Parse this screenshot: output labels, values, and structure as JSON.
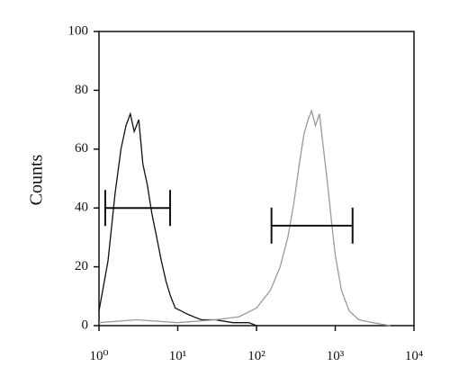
{
  "chart_data": {
    "type": "line",
    "ylabel": "Counts",
    "log_x": true,
    "xlim": [
      1,
      10000
    ],
    "xticks": [
      {
        "value": 1,
        "label": "10⁰"
      },
      {
        "value": 10,
        "label": "10¹"
      },
      {
        "value": 100,
        "label": "10²"
      },
      {
        "value": 1000,
        "label": "10³"
      },
      {
        "value": 10000,
        "label": "10⁴"
      }
    ],
    "ylim": [
      0,
      100
    ],
    "yticks": [
      0,
      20,
      40,
      60,
      80,
      100
    ],
    "series": [
      {
        "color": "#111111",
        "x": [
          1,
          1.3,
          1.6,
          1.9,
          2.2,
          2.5,
          2.8,
          3.2,
          3.6,
          4.1,
          4.7,
          5.4,
          6.2,
          7.1,
          8.1,
          9.3,
          11,
          13,
          16,
          20,
          30,
          50,
          80,
          100
        ],
        "values": [
          5,
          22,
          45,
          60,
          68,
          72,
          66,
          70,
          55,
          48,
          38,
          30,
          22,
          15,
          10,
          6,
          5,
          4,
          3,
          2,
          2,
          1,
          1,
          0
        ]
      },
      {
        "color": "#9a9a9a",
        "x": [
          1,
          3,
          10,
          30,
          60,
          100,
          150,
          200,
          250,
          300,
          350,
          400,
          450,
          500,
          560,
          630,
          710,
          800,
          900,
          1000,
          1200,
          1500,
          2000,
          3000,
          5000
        ],
        "values": [
          1,
          2,
          1,
          2,
          3,
          6,
          12,
          20,
          30,
          42,
          55,
          65,
          70,
          73,
          68,
          72,
          60,
          48,
          35,
          24,
          12,
          5,
          2,
          1,
          0
        ]
      }
    ],
    "gates": [
      {
        "x": [
          1.2,
          8
        ],
        "y": 40
      },
      {
        "x": [
          155,
          1660
        ],
        "y": 34
      }
    ]
  }
}
